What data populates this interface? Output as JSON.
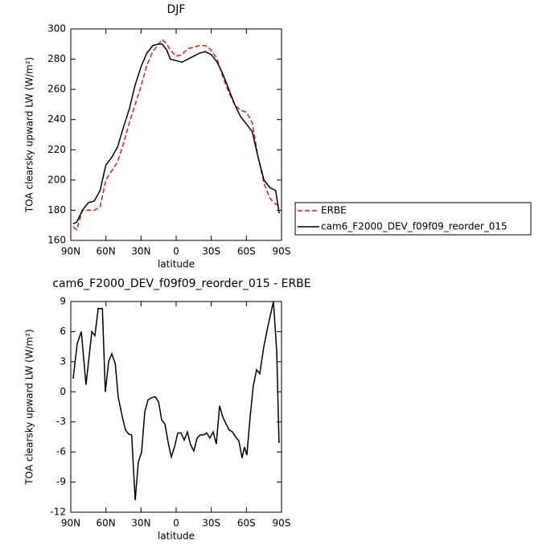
{
  "chart_data": [
    {
      "type": "line",
      "title": "DJF",
      "xlabel": "latitude",
      "ylabel": "TOA clearsky upward LW (W/m²)",
      "x": [
        88,
        85,
        80,
        75,
        70,
        65,
        60,
        55,
        50,
        45,
        40,
        35,
        30,
        25,
        20,
        15,
        12,
        8,
        5,
        0,
        -5,
        -10,
        -15,
        -20,
        -25,
        -30,
        -35,
        -40,
        -45,
        -50,
        -55,
        -60,
        -65,
        -70,
        -75,
        -80,
        -85,
        -88
      ],
      "series": [
        {
          "name": "ERBE",
          "color": "#e41a1c",
          "dash": true,
          "values": [
            169,
            167,
            180,
            180,
            180,
            182,
            200,
            206,
            212,
            224,
            238,
            250,
            262,
            276,
            285,
            290,
            293,
            290,
            286,
            282,
            283,
            287,
            288,
            289,
            289,
            286,
            280,
            268,
            258,
            250,
            246,
            245,
            238,
            215,
            198,
            188,
            184,
            183
          ]
        },
        {
          "name": "cam6_F2000_DEV_f09f09_reorder_015",
          "color": "#000000",
          "dash": false,
          "values": [
            171,
            172,
            180,
            185,
            186,
            193,
            210,
            215,
            222,
            235,
            247,
            263,
            275,
            284,
            289,
            290,
            290,
            286,
            280,
            279,
            278,
            280,
            282,
            284,
            285,
            283,
            278,
            270,
            260,
            250,
            242,
            237,
            232,
            215,
            200,
            195,
            193,
            178
          ]
        }
      ],
      "xlim": [
        90,
        -90
      ],
      "xticks": [
        {
          "value": 90,
          "label": "90N"
        },
        {
          "value": 60,
          "label": "60N"
        },
        {
          "value": 30,
          "label": "30N"
        },
        0,
        {
          "value": -30,
          "label": "30S"
        },
        {
          "value": -60,
          "label": "60S"
        },
        {
          "value": -90,
          "label": "90S"
        }
      ],
      "ylim": [
        160,
        300
      ],
      "yticks": [
        160,
        180,
        200,
        220,
        240,
        260,
        280,
        300
      ],
      "legend": "right"
    },
    {
      "type": "line",
      "title": "cam6_F2000_DEV_f09f09_reorder_015 - ERBE",
      "xlabel": "latitude",
      "ylabel": "TOA clearsky upward LW (W/m²)",
      "x": [
        88,
        84.5,
        81,
        77,
        72,
        69.4,
        66.6,
        63,
        60.5,
        57.7,
        55,
        52,
        49.5,
        46,
        43.3,
        40.5,
        38,
        35,
        32.3,
        29.5,
        26.8,
        24,
        21.3,
        17.9,
        15,
        12.4,
        9.6,
        6.9,
        4.1,
        1.4,
        -1.4,
        -4.1,
        -6.9,
        -9.6,
        -12.4,
        -15.1,
        -17.9,
        -20.6,
        -23.4,
        -26.1,
        -28.8,
        -31.6,
        -34.3,
        -37.1,
        -39.8,
        -42.6,
        -45.3,
        -48.1,
        -50.8,
        -53.6,
        -56.3,
        -58.4,
        -60.4,
        -63.2,
        -65.9,
        -68.7,
        -71.4,
        -74.9,
        -78.3,
        -83.1,
        -85.9,
        -87.9
      ],
      "series": [
        {
          "name": "cam6_F2000_DEV_f09f09_reorder_015 - ERBE",
          "color": "#000000",
          "dash": false,
          "values": [
            1.3,
            4.8,
            6,
            0.7,
            6,
            5.6,
            8.3,
            8.3,
            0,
            3,
            3.8,
            2.8,
            -0.5,
            -2.5,
            -3.8,
            -4.2,
            -4.3,
            -10.8,
            -7,
            -6,
            -2,
            -0.8,
            -0.6,
            -0.5,
            -1,
            -2.8,
            -3.2,
            -5,
            -6.5,
            -5.5,
            -4.1,
            -4.1,
            -4.8,
            -4,
            -5.3,
            -5.9,
            -4.6,
            -4.3,
            -4.3,
            -4.1,
            -4.6,
            -4,
            -5.2,
            -1.4,
            -2.5,
            -3.2,
            -3.8,
            -4,
            -4.5,
            -4.9,
            -6.6,
            -5.5,
            -6.3,
            -2.5,
            0.6,
            2.2,
            1.8,
            4.5,
            6.5,
            9,
            4,
            -5.1
          ]
        }
      ],
      "xlim": [
        90,
        -90
      ],
      "xticks": [
        {
          "value": 90,
          "label": "90N"
        },
        {
          "value": 60,
          "label": "60N"
        },
        {
          "value": 30,
          "label": "30N"
        },
        0,
        {
          "value": -30,
          "label": "30S"
        },
        {
          "value": -60,
          "label": "60S"
        },
        {
          "value": -90,
          "label": "90S"
        }
      ],
      "ylim": [
        -12,
        9
      ],
      "yticks": [
        -12,
        -9,
        -6,
        -3,
        0,
        3,
        6,
        9
      ]
    }
  ]
}
